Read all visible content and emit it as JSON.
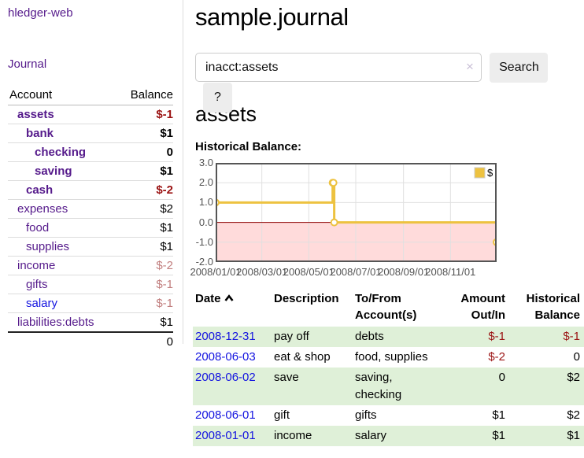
{
  "app": {
    "brand": "hledger-web",
    "nav_journal": "Journal"
  },
  "sidebar": {
    "account_header": "Account",
    "balance_header": "Balance",
    "rows": [
      {
        "account": "assets",
        "balance": "$-1"
      },
      {
        "account": "bank",
        "balance": "$1"
      },
      {
        "account": "checking",
        "balance": "0"
      },
      {
        "account": "saving",
        "balance": "$1"
      },
      {
        "account": "cash",
        "balance": "$-2"
      },
      {
        "account": "expenses",
        "balance": "$2"
      },
      {
        "account": "food",
        "balance": "$1"
      },
      {
        "account": "supplies",
        "balance": "$1"
      },
      {
        "account": "income",
        "balance": "$-2"
      },
      {
        "account": "gifts",
        "balance": "$-1"
      },
      {
        "account": "salary",
        "balance": "$-1"
      },
      {
        "account": "liabilities:debts",
        "balance": "$1"
      }
    ],
    "total": "0"
  },
  "main": {
    "title": "sample.journal",
    "search": {
      "value": "inacct:assets",
      "clear_icon": "×",
      "button_label": "Search",
      "help_label": "?"
    },
    "heading": "assets",
    "chart_label": "Historical Balance:"
  },
  "chart_data": {
    "type": "line",
    "style": "steps",
    "title": "Historical Balance",
    "series": [
      {
        "name": "$",
        "color": "#edc240",
        "points": [
          [
            "2008-01-01",
            1
          ],
          [
            "2008-06-01",
            2
          ],
          [
            "2008-06-02",
            2
          ],
          [
            "2008-06-03",
            0
          ],
          [
            "2008-12-31",
            -1
          ]
        ]
      }
    ],
    "xlim": [
      "2008-01-01",
      "2008-12-31"
    ],
    "ylim": [
      -2,
      3
    ],
    "x_tick_labels": [
      "2008/01/01",
      "2008/03/01",
      "2008/05/01",
      "2008/07/01",
      "2008/09/01",
      "2008/11/01"
    ],
    "y_tick_labels": [
      "3.0",
      "2.0",
      "1.0",
      "0.0",
      "-1.0",
      "-2.0"
    ],
    "y_tick_values": [
      3,
      2,
      1,
      0,
      -1,
      -2
    ],
    "grid": true,
    "legend_position": "top-right",
    "negative_region_fill": "rgba(255,0,0,0.14)",
    "zero_line_color": "#8b0000",
    "border_color": "#555555",
    "grid_color": "#e0e0e0"
  },
  "register": {
    "headers": {
      "date": "Date",
      "description": "Description",
      "accounts": "To/From Account(s)",
      "amount": "Amount Out/In",
      "balance": "Historical Balance"
    },
    "rows": [
      {
        "date": "2008-12-31",
        "description": "pay off",
        "accounts": "debts",
        "amount": "$-1",
        "balance": "$-1"
      },
      {
        "date": "2008-06-03",
        "description": "eat & shop",
        "accounts": "food, supplies",
        "amount": "$-2",
        "balance": "0"
      },
      {
        "date": "2008-06-02",
        "description": "save",
        "accounts": "saving, checking",
        "amount": "0",
        "balance": "$2"
      },
      {
        "date": "2008-06-01",
        "description": "gift",
        "accounts": "gifts",
        "amount": "$1",
        "balance": "$2"
      },
      {
        "date": "2008-01-01",
        "description": "income",
        "accounts": "salary",
        "amount": "$1",
        "balance": "$1"
      }
    ]
  },
  "colors": {
    "accent_purple": "#551a8b",
    "link_blue": "#1414e0",
    "negative_strong": "#9b1313",
    "negative_faded": "#c17e7e",
    "row_stripe_green": "#dff0d8",
    "series_gold": "#edc240"
  }
}
